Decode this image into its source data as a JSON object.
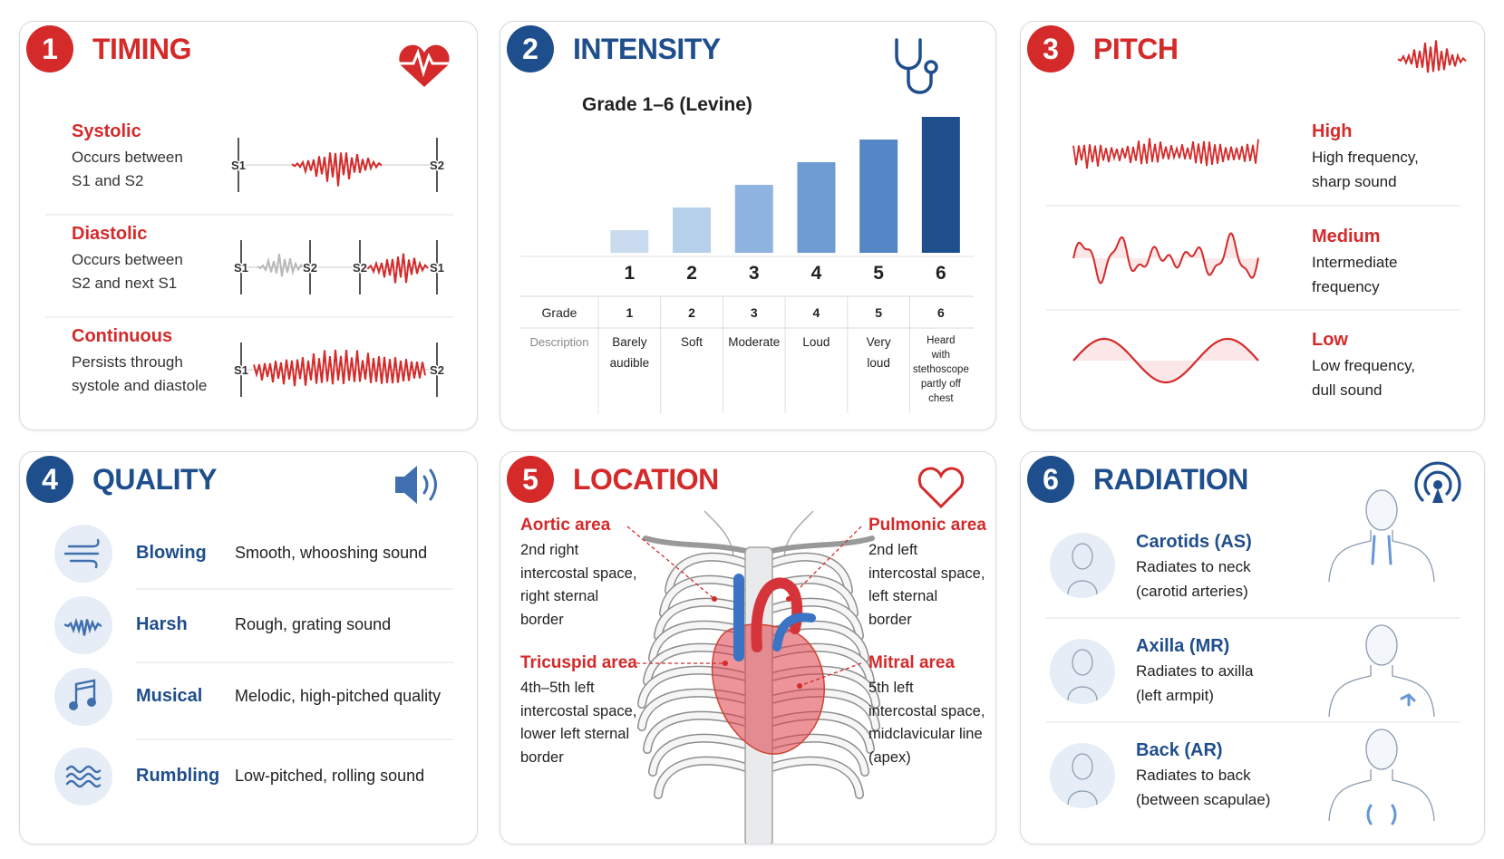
{
  "panels": [
    {
      "number": "1",
      "title": "TIMING",
      "color": "#d42a2a",
      "items": [
        {
          "name": "Systolic",
          "description": [
            "Occurs between",
            "S1 and S2"
          ],
          "markers": [
            "S1",
            "S2"
          ]
        },
        {
          "name": "Diastolic",
          "description": [
            "Occurs between",
            "S2 and next S1"
          ],
          "markers": [
            "S1",
            "S2",
            "S2",
            "S1"
          ]
        },
        {
          "name": "Continuous",
          "description": [
            "Persists through",
            "systole and diastole"
          ],
          "markers": [
            "S1",
            "S2"
          ]
        }
      ]
    },
    {
      "number": "2",
      "title": "INTENSITY",
      "color": "#1f4e8c",
      "subtitle": "Grade 1–6 (Levine)",
      "chart": {
        "type": "bar",
        "categories": [
          "1",
          "2",
          "3",
          "4",
          "5",
          "6"
        ],
        "values": [
          1,
          2,
          3,
          4,
          5,
          6
        ],
        "ylim": [
          0,
          6
        ],
        "colors": [
          "#c9dbef",
          "#b6cfeb",
          "#8fb4df",
          "#6e9cd2",
          "#5586c6",
          "#1f4e8c"
        ]
      },
      "table": {
        "rows": [
          [
            "Grade",
            "1",
            "2",
            "3",
            "4",
            "5",
            "6"
          ],
          [
            "Description",
            [
              "Barely",
              "audible"
            ],
            [
              "Soft"
            ],
            [
              "Moderate"
            ],
            [
              "Loud"
            ],
            [
              "Very",
              "loud"
            ],
            [
              "Heard",
              "with",
              "stethoscope",
              "partly off",
              "chest"
            ]
          ]
        ]
      }
    },
    {
      "number": "3",
      "title": "PITCH",
      "color": "#d42a2a",
      "items": [
        {
          "name": "High",
          "description": [
            "High frequency,",
            "sharp sound"
          ]
        },
        {
          "name": "Medium",
          "description": [
            "Intermediate",
            "frequency"
          ]
        },
        {
          "name": "Low",
          "description": [
            "Low frequency,",
            "dull sound"
          ]
        }
      ]
    },
    {
      "number": "4",
      "title": "QUALITY",
      "color": "#1f4e8c",
      "items": [
        {
          "name": "Blowing",
          "description": "Smooth, whooshing sound"
        },
        {
          "name": "Harsh",
          "description": "Rough, grating sound"
        },
        {
          "name": "Musical",
          "description": "Melodic, high-pitched quality"
        },
        {
          "name": "Rumbling",
          "description": "Low-pitched, rolling sound"
        }
      ]
    },
    {
      "number": "5",
      "title": "LOCATION",
      "color": "#d42a2a",
      "areas": [
        {
          "name": "Aortic area",
          "description": [
            "2nd right",
            "intercostal space,",
            "right sternal",
            "border"
          ]
        },
        {
          "name": "Pulmonic area",
          "description": [
            "2nd left",
            "intercostal space,",
            "left sternal",
            "border"
          ]
        },
        {
          "name": "Tricuspid area",
          "description": [
            "4th–5th left",
            "intercostal space,",
            "lower left sternal",
            "border"
          ]
        },
        {
          "name": "Mitral area",
          "description": [
            "5th left",
            "intercostal space,",
            "midclavicular line",
            "(apex)"
          ]
        }
      ]
    },
    {
      "number": "6",
      "title": "RADIATION",
      "color": "#1f4e8c",
      "items": [
        {
          "name": "Carotids (AS)",
          "description": [
            "Radiates to neck",
            "(carotid arteries)"
          ]
        },
        {
          "name": "Axilla (MR)",
          "description": [
            "Radiates to axilla",
            "(left armpit)"
          ]
        },
        {
          "name": "Back (AR)",
          "description": [
            "Radiates to back",
            "(between scapulae)"
          ]
        }
      ]
    }
  ]
}
